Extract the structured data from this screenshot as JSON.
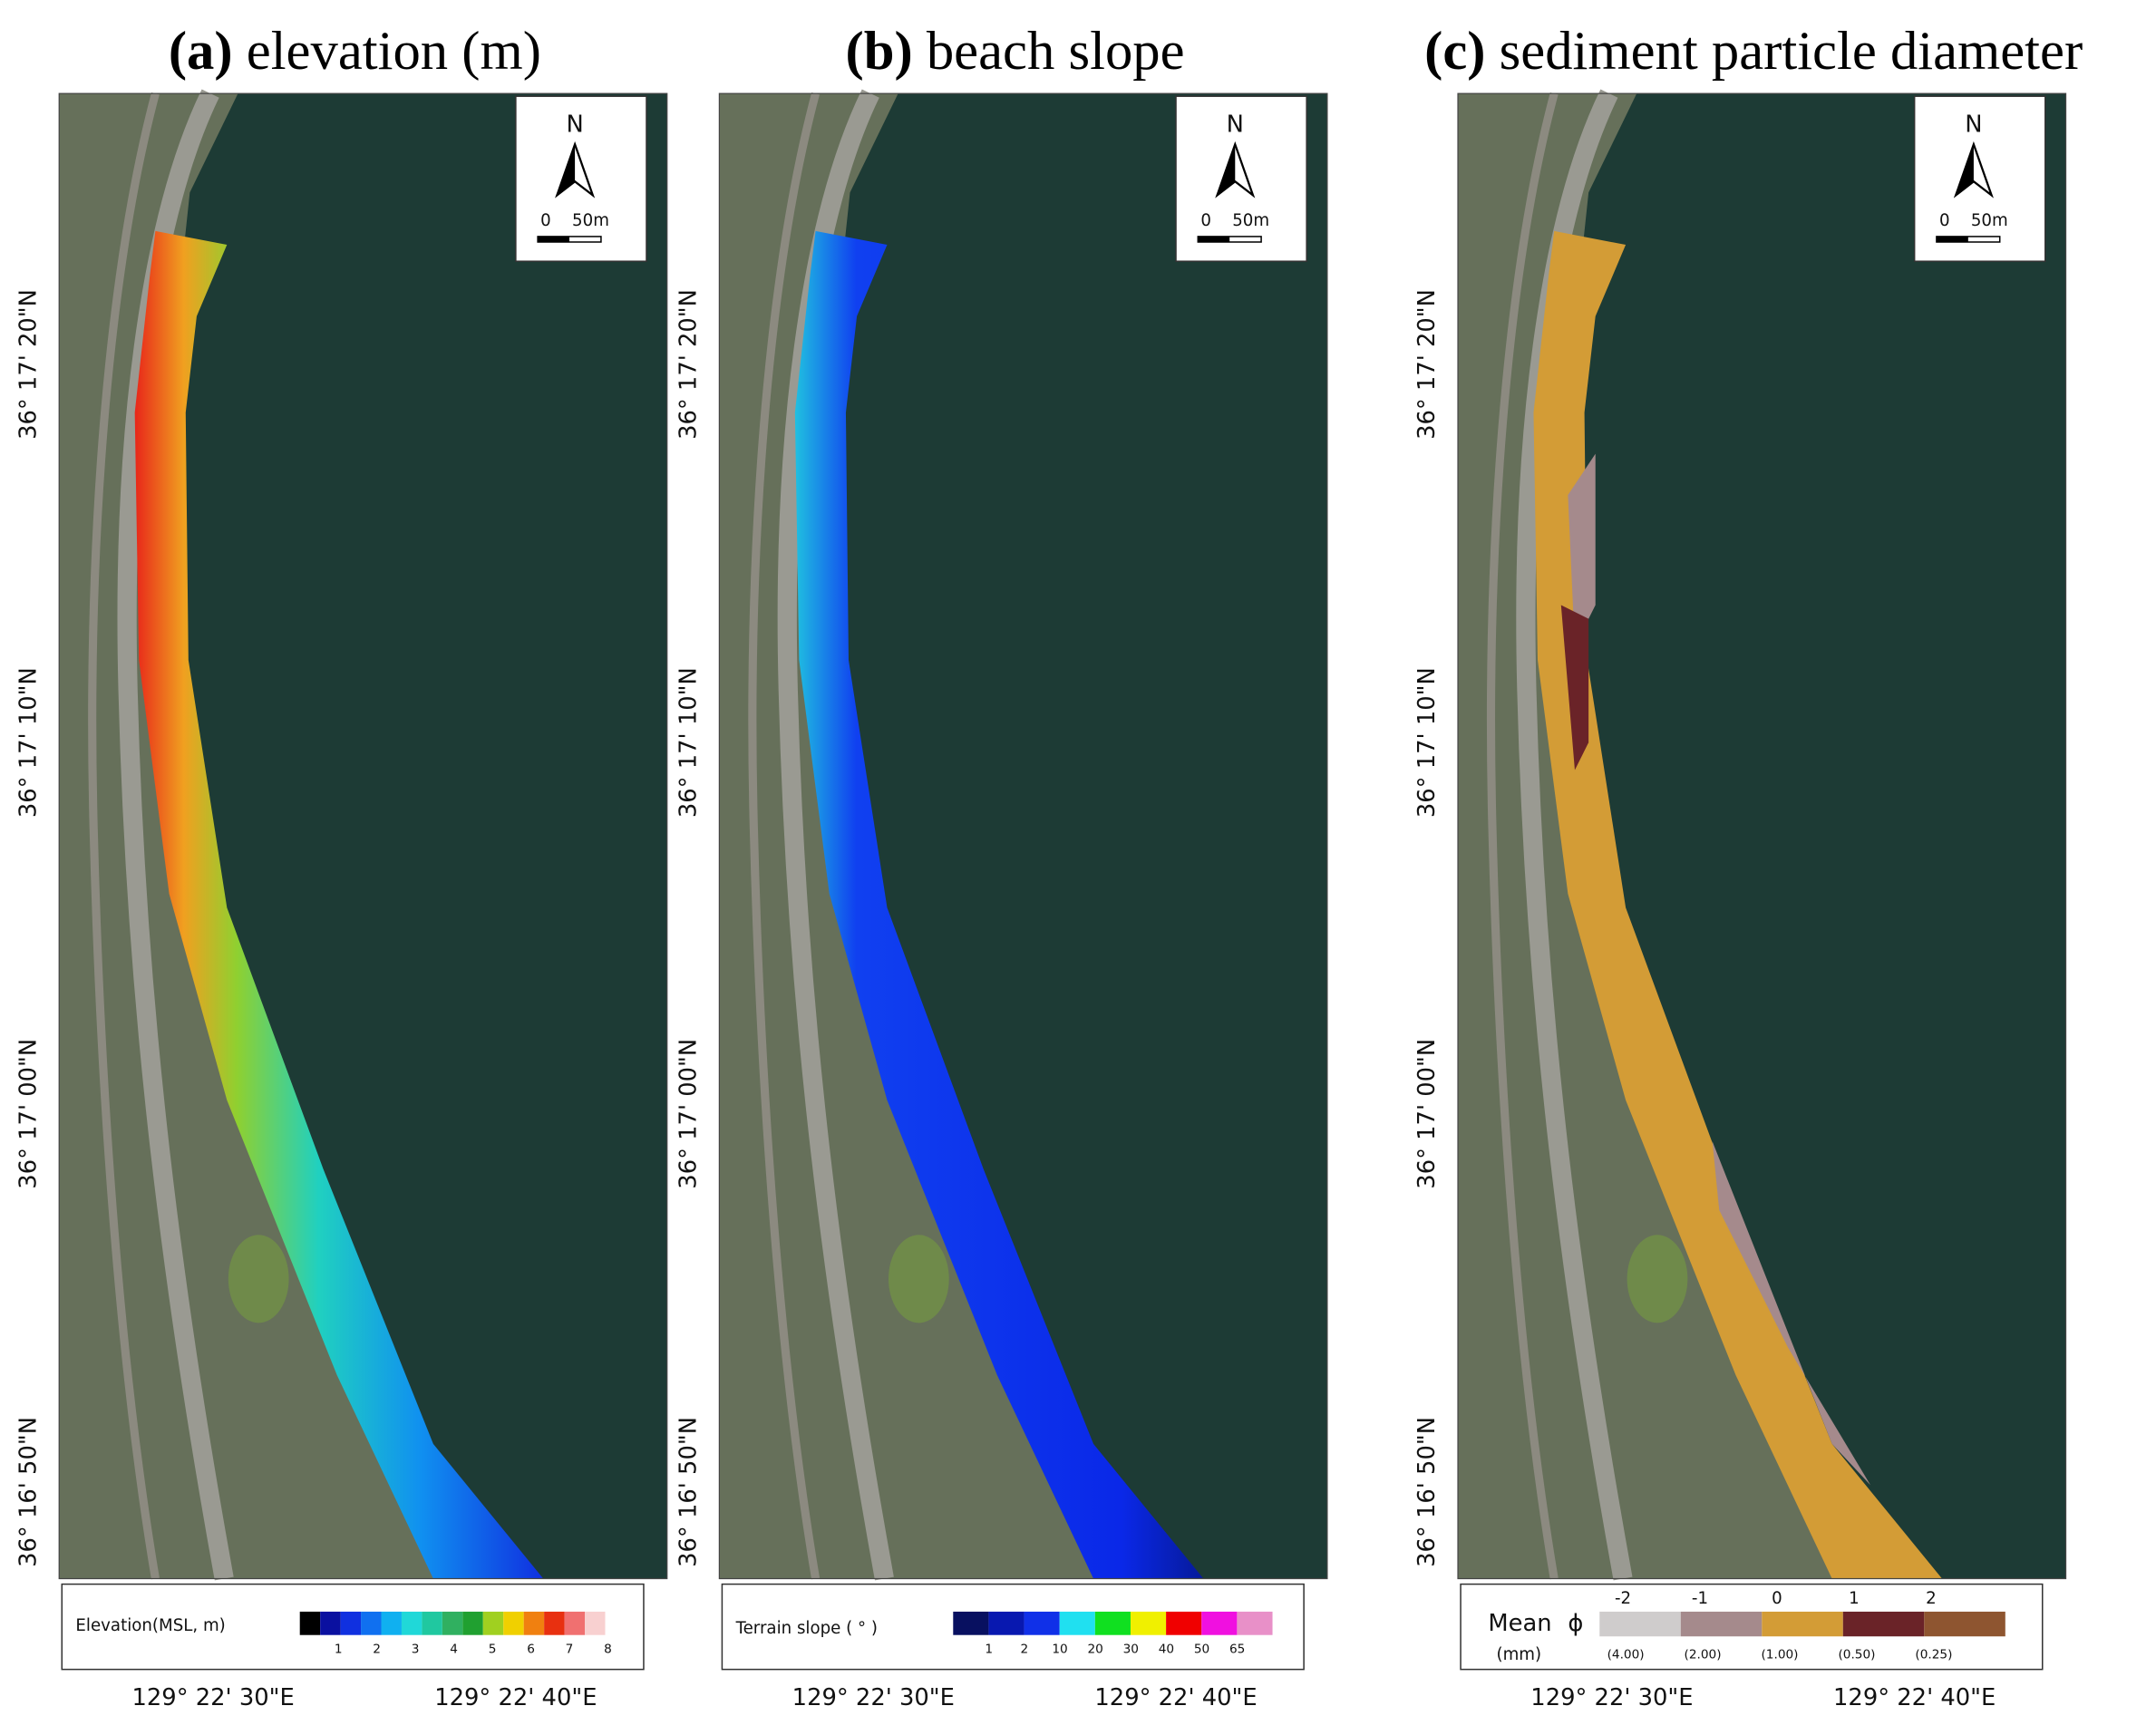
{
  "panels": [
    {
      "label": "(a)",
      "title": "elevation (m)",
      "legend": {
        "title": "Elevation(MSL, m)",
        "ticks": [
          "1",
          "2",
          "3",
          "4",
          "5",
          "6",
          "7",
          "8"
        ]
      }
    },
    {
      "label": "(b)",
      "title": "beach slope",
      "legend": {
        "title": "Terrain slope ( ° )",
        "ticks": [
          "1",
          "2",
          "10",
          "20",
          "30",
          "40",
          "50",
          "65"
        ]
      }
    },
    {
      "label": "(c)",
      "title": "sediment particle diameter",
      "legend": {
        "title": "Mean",
        "symbol": "ϕ",
        "unit": "(mm)",
        "phi": [
          "-2",
          "-1",
          "0",
          "1",
          "2"
        ],
        "mm": [
          "(4.00)",
          "(2.00)",
          "(1.00)",
          "(0.50)",
          "(0.25)"
        ]
      }
    }
  ],
  "lat_labels": [
    "36° 17' 20\"N",
    "36° 17' 10\"N",
    "36° 17' 00\"N",
    "36° 16' 50\"N"
  ],
  "lon_labels": [
    "129° 22' 30\"E",
    "129° 22' 40\"E"
  ],
  "north": "N",
  "scale": [
    "0",
    "50m"
  ]
}
